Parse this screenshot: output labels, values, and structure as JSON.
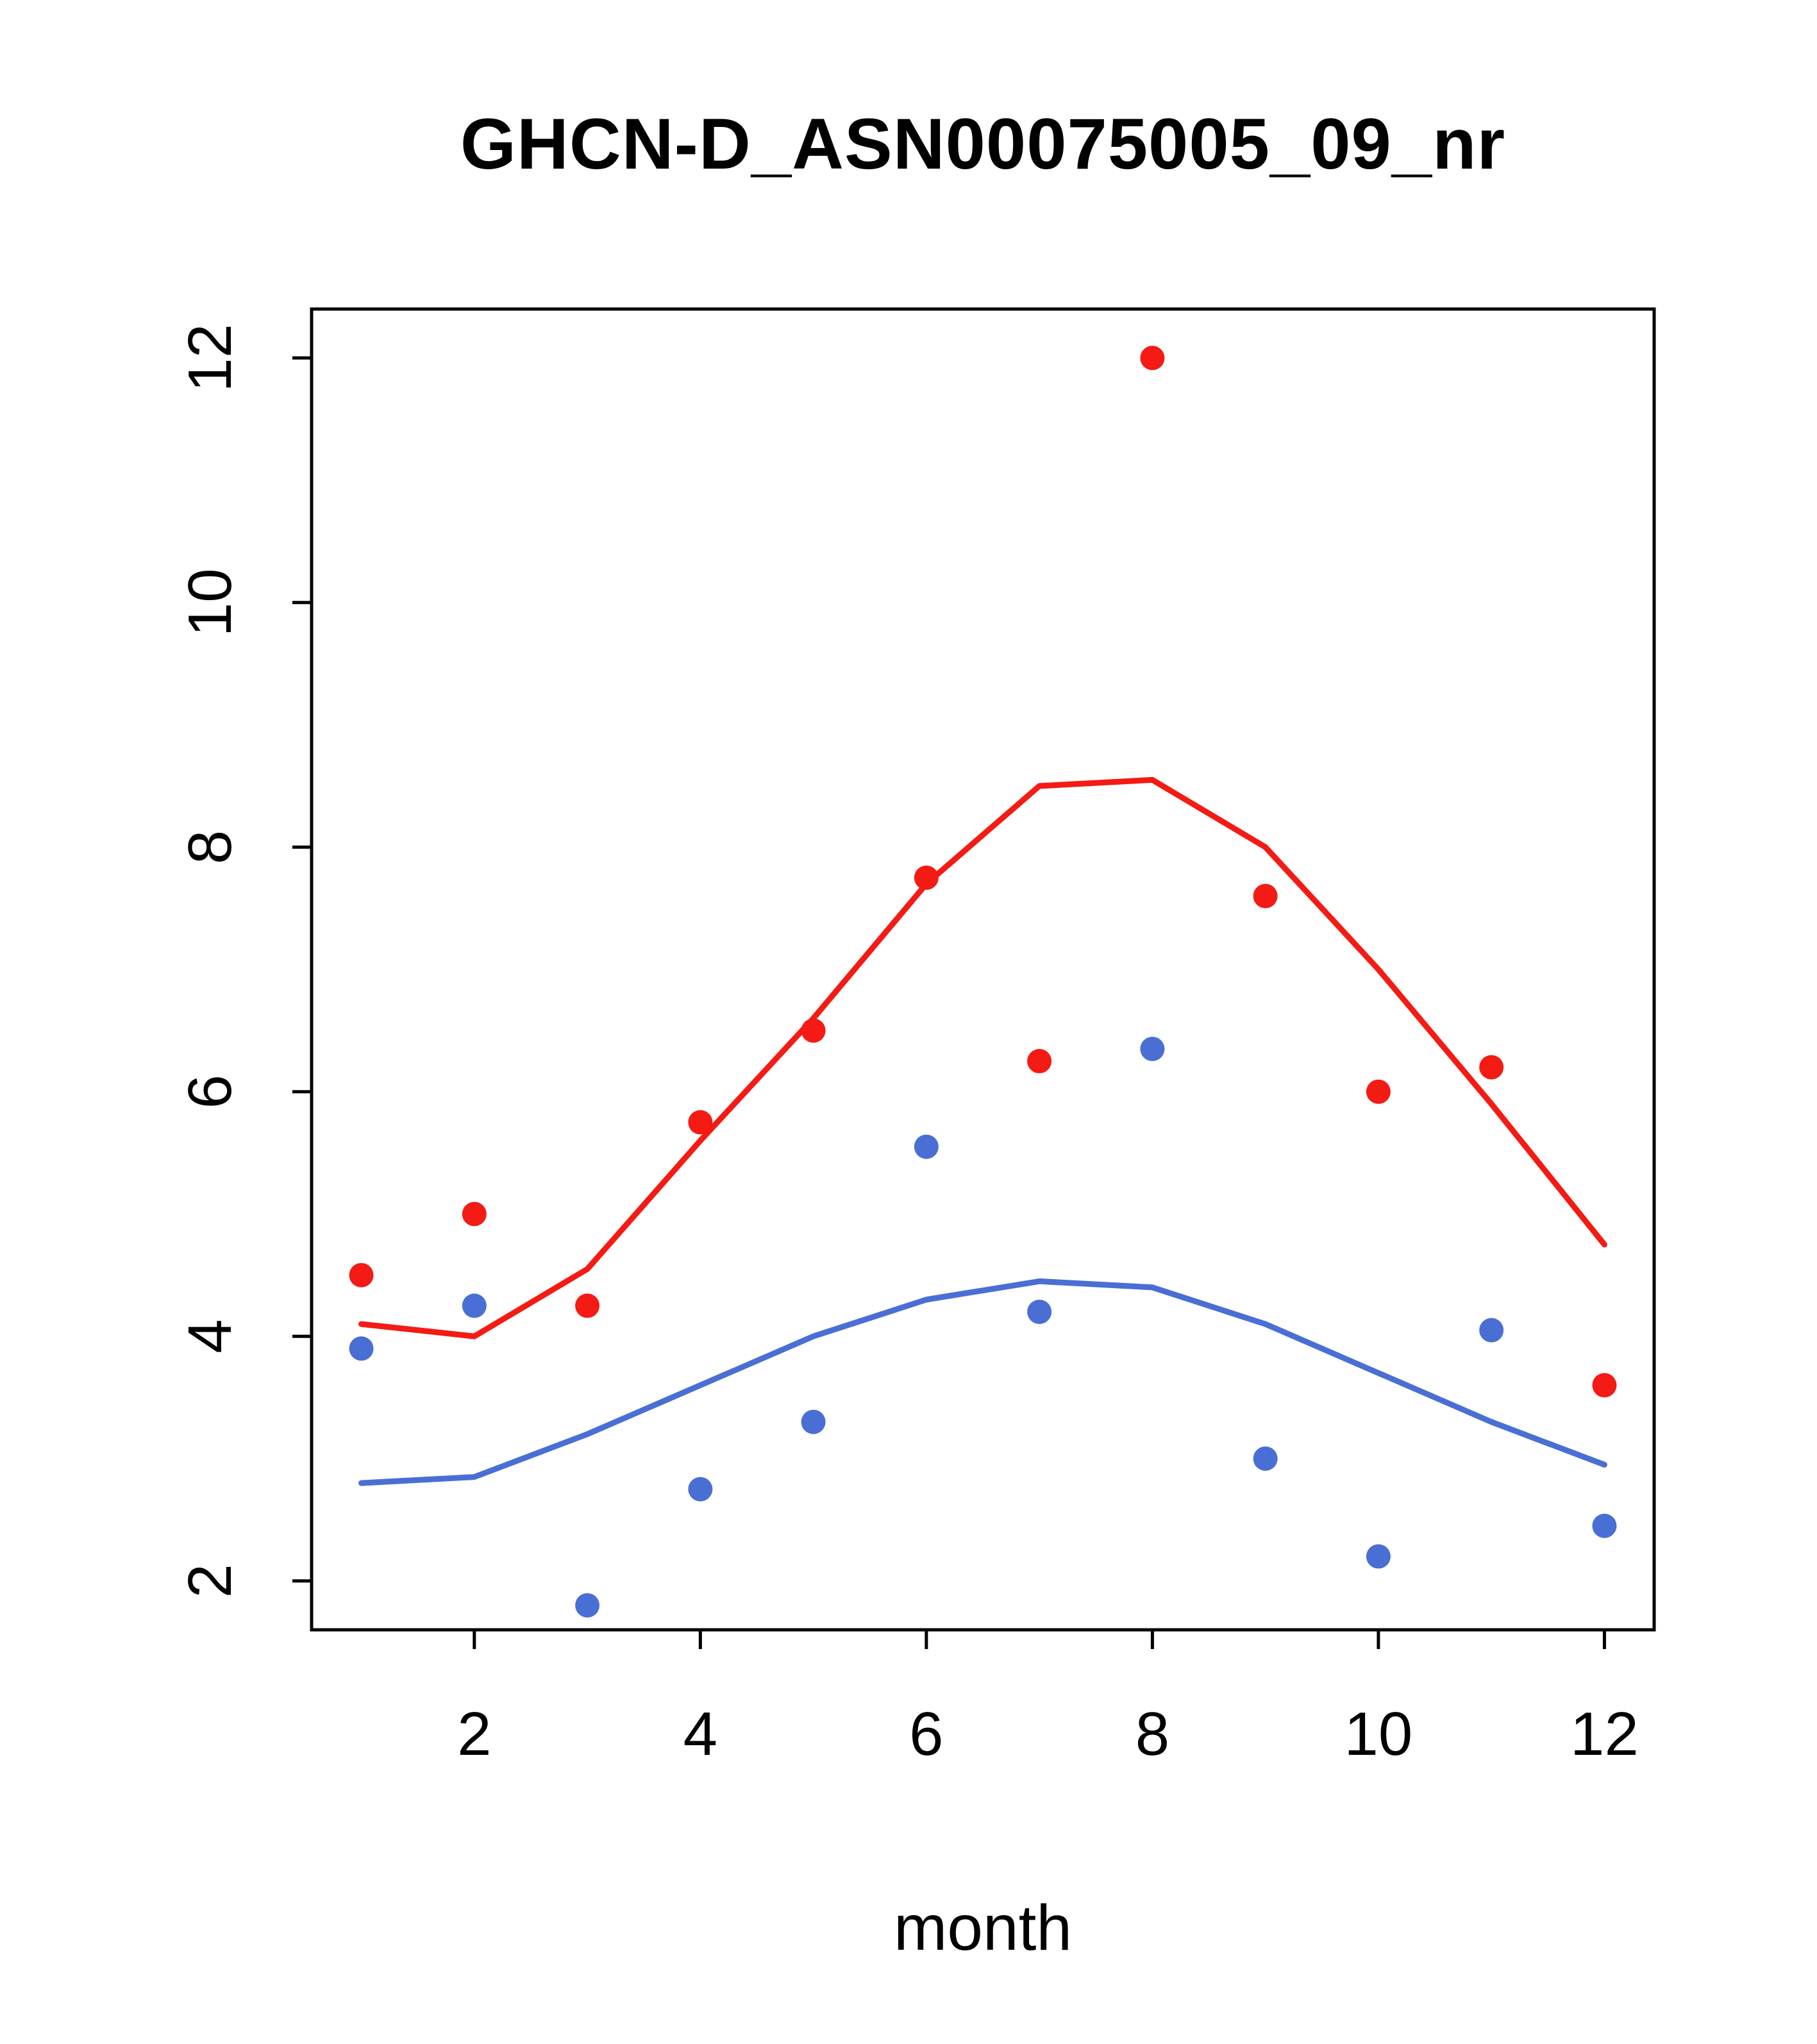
{
  "page": {
    "title": "GHCN-D_ASN00075005_09_nr"
  },
  "chart_data": {
    "type": "scatter",
    "title": "GHCN-D_ASN00075005_09_nr",
    "xlabel": "month",
    "ylabel": "",
    "grid": false,
    "legend": "none",
    "x": [
      1,
      2,
      3,
      4,
      5,
      6,
      7,
      8,
      9,
      10,
      11,
      12
    ],
    "x_ticks": [
      2,
      4,
      6,
      8,
      10,
      12
    ],
    "y_ticks": [
      2,
      4,
      6,
      8,
      10,
      12
    ],
    "xlim": [
      0.56,
      12.44
    ],
    "ylim": [
      1.6,
      12.4
    ],
    "colors": {
      "series1": "#f31b14",
      "series2": "#4a6fd4",
      "axis": "#000000",
      "background": "#ffffff"
    },
    "series": [
      {
        "name": "red-points",
        "style": "points",
        "color": "#f31b14",
        "values": [
          4.5,
          5.0,
          4.25,
          5.75,
          6.5,
          7.75,
          6.25,
          12.0,
          7.6,
          6.0,
          6.2,
          3.6
        ]
      },
      {
        "name": "red-trend-line",
        "style": "line",
        "color": "#f31b14",
        "values": [
          4.1,
          4.0,
          4.55,
          5.6,
          6.6,
          7.7,
          8.5,
          8.55,
          8.0,
          7.0,
          5.9,
          4.75
        ]
      },
      {
        "name": "blue-points",
        "style": "points",
        "color": "#4a6fd4",
        "values": [
          3.9,
          4.25,
          1.8,
          2.75,
          3.3,
          5.55,
          4.2,
          6.35,
          3.0,
          2.2,
          4.05,
          2.45
        ]
      },
      {
        "name": "blue-trend-line",
        "style": "line",
        "color": "#4a6fd4",
        "values": [
          2.8,
          2.85,
          3.2,
          3.6,
          4.0,
          4.3,
          4.45,
          4.4,
          4.1,
          3.7,
          3.3,
          2.95
        ]
      }
    ]
  }
}
